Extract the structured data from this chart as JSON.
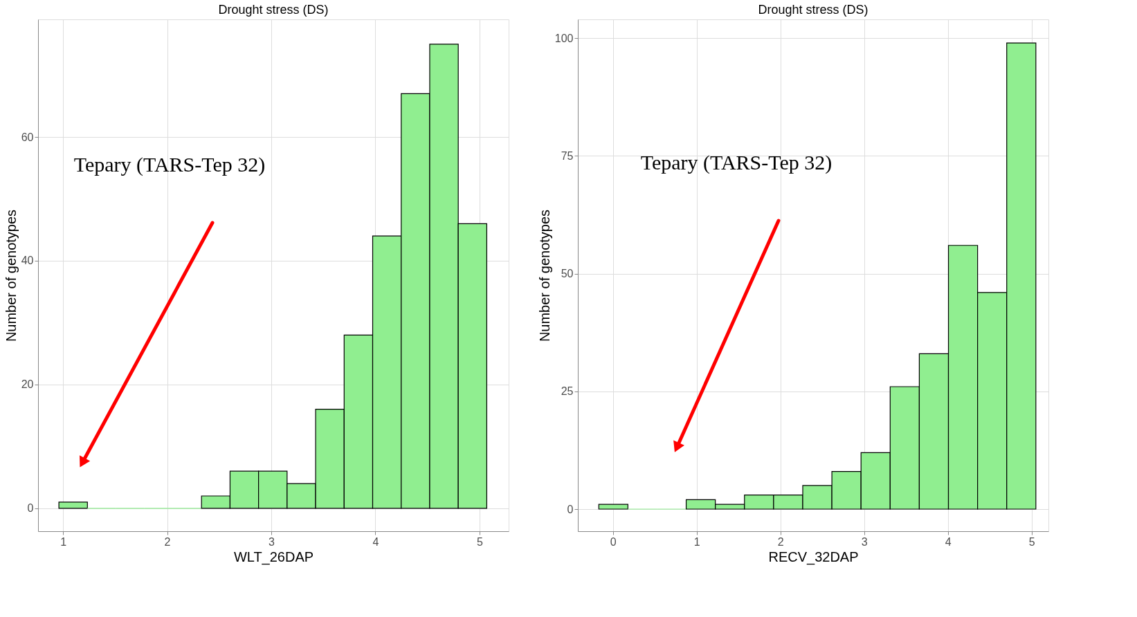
{
  "chart_data": [
    {
      "type": "histogram",
      "title": "Drought stress (DS)",
      "xlabel": "WLT_26DAP",
      "ylabel": "Number of genotypes",
      "color": "#90ee90",
      "bins": [
        0.96,
        1.234,
        1.508,
        1.782,
        2.056,
        2.33,
        2.604,
        2.878,
        3.152,
        3.426,
        3.7,
        3.974,
        4.248,
        4.522,
        4.796,
        5.07
      ],
      "values": [
        1,
        0,
        0,
        0,
        0,
        2,
        6,
        6,
        4,
        16,
        28,
        44,
        67,
        75,
        46
      ],
      "xlim": [
        0.76,
        5.28
      ],
      "xticks": [
        1,
        2,
        3,
        4,
        5
      ],
      "ylim": [
        -3.7,
        79
      ],
      "yticks": [
        0,
        20,
        40,
        60
      ],
      "grid": true,
      "annotations": [
        "Tepary (TARS-Tep 32)"
      ]
    },
    {
      "type": "histogram",
      "title": "Drought stress (DS)",
      "xlabel": "RECV_32DAP",
      "ylabel": "Number of genotypes",
      "color": "#90ee90",
      "bins": [
        -0.17,
        0.178,
        0.526,
        0.874,
        1.222,
        1.57,
        1.918,
        2.266,
        2.614,
        2.962,
        3.31,
        3.658,
        4.006,
        4.354,
        4.702,
        5.05
      ],
      "values": [
        1,
        0,
        0,
        2,
        1,
        3,
        3,
        5,
        8,
        12,
        26,
        33,
        56,
        46,
        99
      ],
      "xlim": [
        -0.42,
        5.2
      ],
      "xticks": [
        0,
        1,
        2,
        3,
        4,
        5
      ],
      "ylim": [
        -4.7,
        104
      ],
      "yticks": [
        0,
        25,
        50,
        75,
        100
      ],
      "grid": true,
      "annotations": [
        "Tepary (TARS-Tep 32)"
      ]
    }
  ]
}
